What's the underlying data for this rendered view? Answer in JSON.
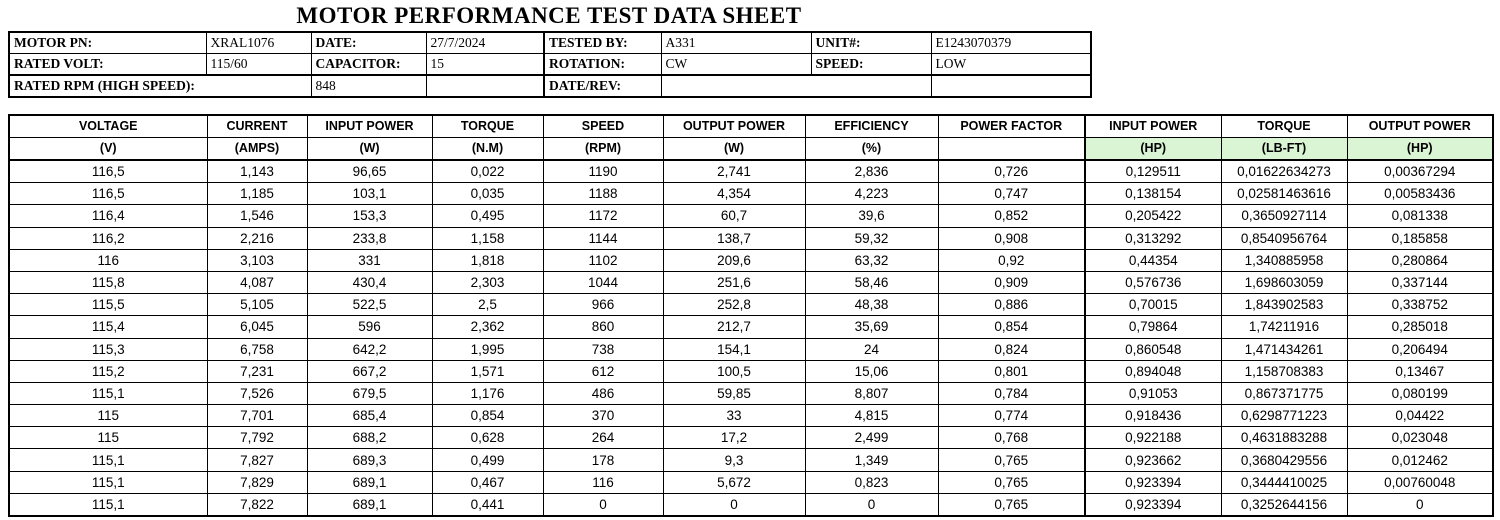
{
  "title": "MOTOR PERFORMANCE TEST DATA SHEET",
  "colors": {
    "unit_highlight": "#d9f5d3",
    "border": "#000000",
    "background": "#ffffff"
  },
  "info": {
    "rows": [
      {
        "cells": [
          {
            "kind": "label",
            "text": "MOTOR PN:"
          },
          {
            "kind": "value",
            "text": "XRAL1076"
          },
          {
            "kind": "label",
            "text": "DATE:"
          },
          {
            "kind": "value",
            "text": "27/7/2024"
          },
          {
            "kind": "label",
            "text": "TESTED BY:",
            "thickleft": true
          },
          {
            "kind": "value",
            "text": "A331"
          },
          {
            "kind": "label",
            "text": "UNIT#:"
          },
          {
            "kind": "value",
            "text": "E1243070379"
          }
        ]
      },
      {
        "cells": [
          {
            "kind": "label",
            "text": "RATED VOLT:"
          },
          {
            "kind": "value",
            "text": "115/60"
          },
          {
            "kind": "label",
            "text": "CAPACITOR:"
          },
          {
            "kind": "value",
            "text": "15"
          },
          {
            "kind": "label",
            "text": "ROTATION:",
            "thickleft": true
          },
          {
            "kind": "value",
            "text": "CW"
          },
          {
            "kind": "label",
            "text": "SPEED:"
          },
          {
            "kind": "value",
            "text": "LOW"
          }
        ]
      },
      {
        "cells": [
          {
            "kind": "label",
            "text": "RATED RPM (HIGH SPEED):",
            "span": 2
          },
          {
            "kind": "value",
            "text": "848"
          },
          {
            "kind": "value",
            "text": ""
          },
          {
            "kind": "label",
            "text": "DATE/REV:",
            "thickleft": true
          },
          {
            "kind": "value",
            "text": "",
            "span": 2
          },
          {
            "kind": "value",
            "text": ""
          }
        ]
      }
    ]
  },
  "table": {
    "columns": [
      {
        "name": "VOLTAGE",
        "unit": "(V)",
        "green": false
      },
      {
        "name": "CURRENT",
        "unit": "(AMPS)",
        "green": false
      },
      {
        "name": "INPUT POWER",
        "unit": "(W)",
        "green": false
      },
      {
        "name": "TORQUE",
        "unit": "(N.M)",
        "green": false
      },
      {
        "name": "SPEED",
        "unit": "(RPM)",
        "green": false
      },
      {
        "name": "OUTPUT POWER",
        "unit": "(W)",
        "green": false
      },
      {
        "name": "EFFICIENCY",
        "unit": "(%)",
        "green": false
      },
      {
        "name": "POWER FACTOR",
        "unit": "",
        "green": false
      },
      {
        "name": "INPUT POWER",
        "unit": "(HP)",
        "green": true
      },
      {
        "name": "TORQUE",
        "unit": "(LB-FT)",
        "green": true
      },
      {
        "name": "OUTPUT POWER",
        "unit": "(HP)",
        "green": true
      }
    ],
    "rows": [
      [
        "116,5",
        "1,143",
        "96,65",
        "0,022",
        "1190",
        "2,741",
        "2,836",
        "0,726",
        "0,129511",
        "0,01622634273",
        "0,00367294"
      ],
      [
        "116,5",
        "1,185",
        "103,1",
        "0,035",
        "1188",
        "4,354",
        "4,223",
        "0,747",
        "0,138154",
        "0,02581463616",
        "0,00583436"
      ],
      [
        "116,4",
        "1,546",
        "153,3",
        "0,495",
        "1172",
        "60,7",
        "39,6",
        "0,852",
        "0,205422",
        "0,3650927114",
        "0,081338"
      ],
      [
        "116,2",
        "2,216",
        "233,8",
        "1,158",
        "1144",
        "138,7",
        "59,32",
        "0,908",
        "0,313292",
        "0,8540956764",
        "0,185858"
      ],
      [
        "116",
        "3,103",
        "331",
        "1,818",
        "1102",
        "209,6",
        "63,32",
        "0,92",
        "0,44354",
        "1,340885958",
        "0,280864"
      ],
      [
        "115,8",
        "4,087",
        "430,4",
        "2,303",
        "1044",
        "251,6",
        "58,46",
        "0,909",
        "0,576736",
        "1,698603059",
        "0,337144"
      ],
      [
        "115,5",
        "5,105",
        "522,5",
        "2,5",
        "966",
        "252,8",
        "48,38",
        "0,886",
        "0,70015",
        "1,843902583",
        "0,338752"
      ],
      [
        "115,4",
        "6,045",
        "596",
        "2,362",
        "860",
        "212,7",
        "35,69",
        "0,854",
        "0,79864",
        "1,74211916",
        "0,285018"
      ],
      [
        "115,3",
        "6,758",
        "642,2",
        "1,995",
        "738",
        "154,1",
        "24",
        "0,824",
        "0,860548",
        "1,471434261",
        "0,206494"
      ],
      [
        "115,2",
        "7,231",
        "667,2",
        "1,571",
        "612",
        "100,5",
        "15,06",
        "0,801",
        "0,894048",
        "1,158708383",
        "0,13467"
      ],
      [
        "115,1",
        "7,526",
        "679,5",
        "1,176",
        "486",
        "59,85",
        "8,807",
        "0,784",
        "0,91053",
        "0,867371775",
        "0,080199"
      ],
      [
        "115",
        "7,701",
        "685,4",
        "0,854",
        "370",
        "33",
        "4,815",
        "0,774",
        "0,918436",
        "0,6298771223",
        "0,04422"
      ],
      [
        "115",
        "7,792",
        "688,2",
        "0,628",
        "264",
        "17,2",
        "2,499",
        "0,768",
        "0,922188",
        "0,4631883288",
        "0,023048"
      ],
      [
        "115,1",
        "7,827",
        "689,3",
        "0,499",
        "178",
        "9,3",
        "1,349",
        "0,765",
        "0,923662",
        "0,3680429556",
        "0,012462"
      ],
      [
        "115,1",
        "7,829",
        "689,1",
        "0,467",
        "116",
        "5,672",
        "0,823",
        "0,765",
        "0,923394",
        "0,3444410025",
        "0,00760048"
      ],
      [
        "115,1",
        "7,822",
        "689,1",
        "0,441",
        "0",
        "0",
        "0",
        "0,765",
        "0,923394",
        "0,3252644156",
        "0"
      ]
    ]
  }
}
